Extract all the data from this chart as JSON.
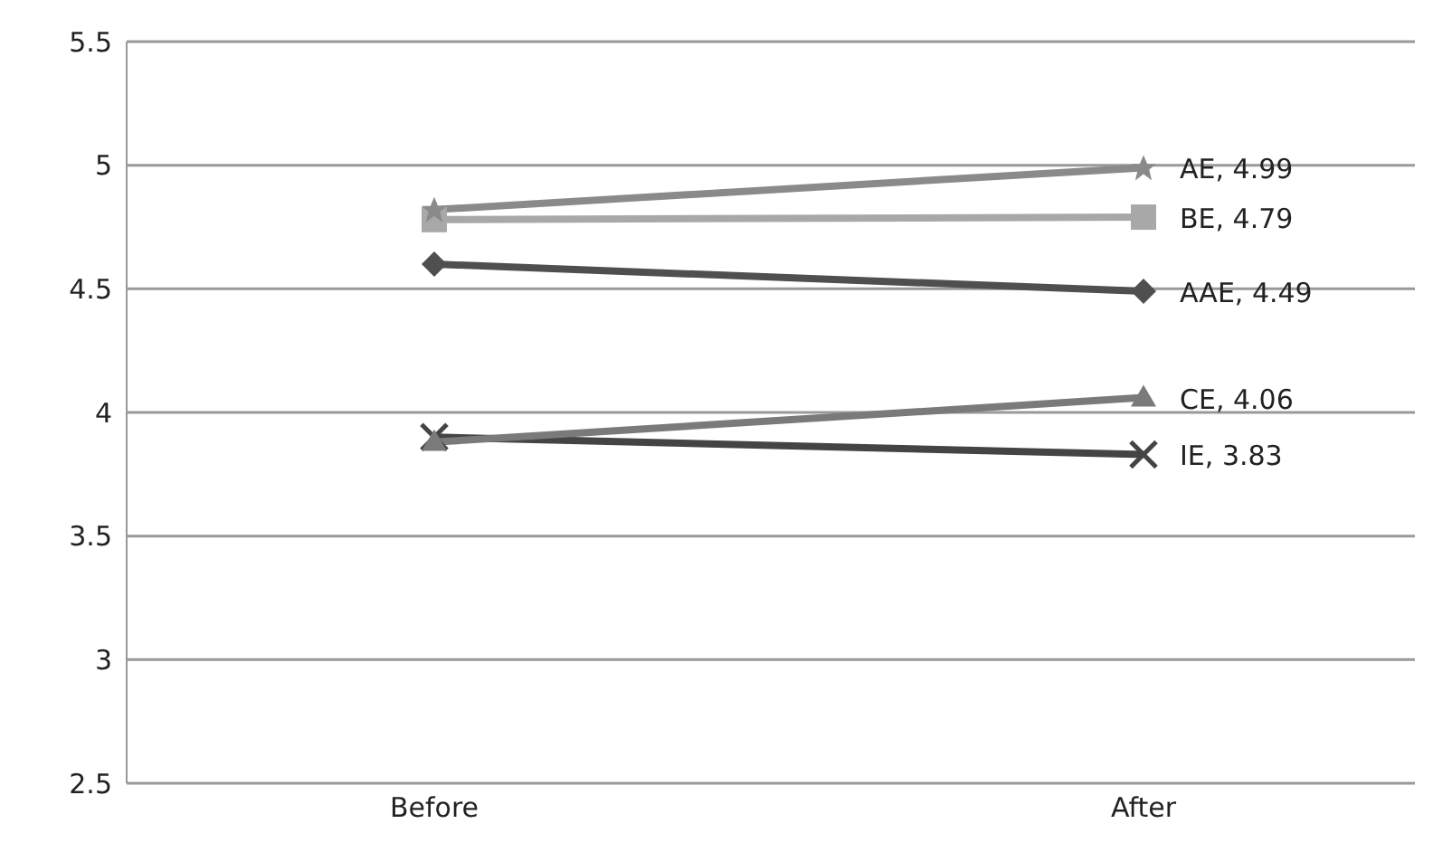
{
  "chart_data": {
    "type": "line",
    "categories": [
      "Before",
      "After"
    ],
    "series": [
      {
        "color": "#8a8a8a",
        "marker": "star",
        "values": [
          4.82,
          4.99
        ],
        "value_labels": [
          null,
          "AE, 4.99"
        ]
      },
      {
        "color": "#a8a8a8",
        "marker": "square",
        "values": [
          4.78,
          4.79
        ],
        "value_labels": [
          null,
          "BE, 4.79"
        ]
      },
      {
        "color": "#4f4f4f",
        "marker": "diamond",
        "values": [
          4.6,
          4.49
        ],
        "value_labels": [
          null,
          "AAE, 4.49"
        ]
      },
      {
        "color": "#7a7a7a",
        "marker": "triangle",
        "values": [
          3.88,
          4.06
        ],
        "value_labels": [
          null,
          "CE, 4.06"
        ]
      },
      {
        "color": "#444444",
        "marker": "cross",
        "values": [
          3.9,
          3.83
        ],
        "value_labels": [
          null,
          "IE, 3.83"
        ]
      }
    ],
    "ylim": [
      2.5,
      5.5
    ],
    "yticks": [
      2.5,
      3,
      3.5,
      4,
      4.5,
      5,
      5.5
    ],
    "grid": "y",
    "legend": false
  }
}
